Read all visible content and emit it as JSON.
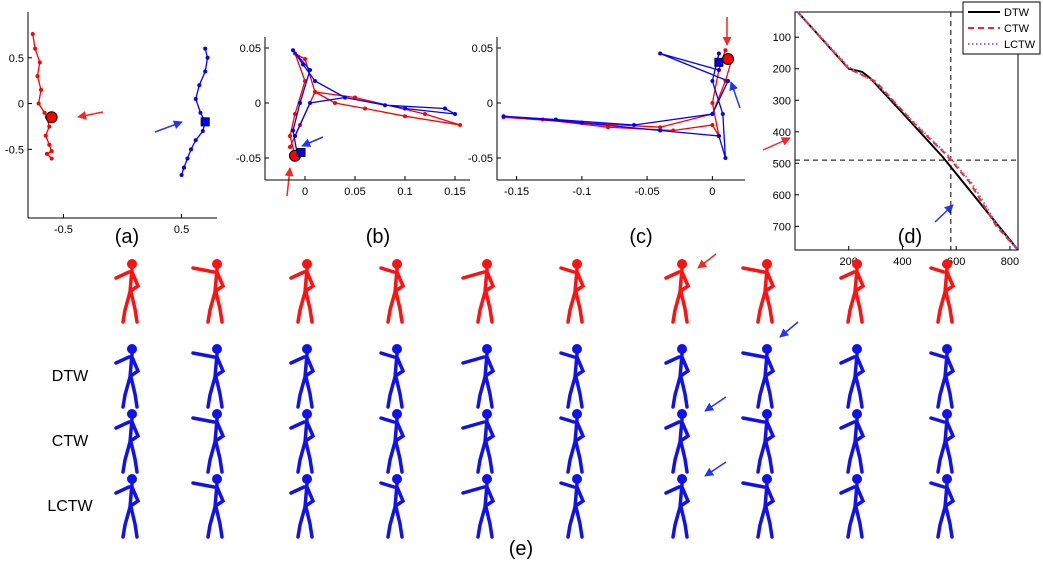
{
  "chart_data": [
    {
      "type": "line",
      "panel": "(a)",
      "xlim": [
        -0.8,
        0.8
      ],
      "ylim": [
        -1.25,
        1
      ],
      "xticks": [
        -0.5,
        0.5
      ],
      "yticks": [
        0.5,
        0,
        -0.5
      ],
      "series": [
        {
          "color": "#ff0000",
          "x": [
            -0.76,
            -0.74,
            -0.7,
            -0.72,
            -0.69,
            -0.71,
            -0.66,
            -0.64,
            -0.62,
            -0.65,
            -0.62,
            -0.6,
            -0.64,
            -0.6
          ],
          "values": [
            0.76,
            0.6,
            0.45,
            0.3,
            0.15,
            0.0,
            -0.1,
            -0.15,
            -0.25,
            -0.35,
            -0.45,
            -0.52,
            -0.55,
            -0.6
          ]
        },
        {
          "color": "#0000ff",
          "x": [
            0.7,
            0.72,
            0.7,
            0.65,
            0.62,
            0.66,
            0.7,
            0.68,
            0.62,
            0.58,
            0.55,
            0.52,
            0.5,
            0.52
          ],
          "values": [
            0.6,
            0.5,
            0.35,
            0.2,
            0.05,
            -0.1,
            -0.2,
            -0.3,
            -0.4,
            -0.5,
            -0.6,
            -0.7,
            -0.78,
            -0.7
          ]
        }
      ],
      "highlights": [
        {
          "color": "#ff0000",
          "marker": "circle",
          "x": -0.6,
          "value": -0.15
        },
        {
          "color": "#0000ff",
          "marker": "square",
          "x": 0.7,
          "value": -0.2
        }
      ]
    },
    {
      "type": "line",
      "panel": "(b)",
      "xlim": [
        -0.04,
        0.165
      ],
      "ylim": [
        -0.07,
        0.06
      ],
      "xticks": [
        0,
        0.05,
        0.1,
        0.15
      ],
      "yticks": [
        0.05,
        0,
        -0.05
      ],
      "series": [
        {
          "color": "#ff0000",
          "x": [
            -0.01,
            -0.015,
            -0.01,
            0,
            -0.01,
            0,
            0.01,
            0.03,
            0.06,
            0.1,
            0.155,
            0.12,
            0.05,
            0.01,
            -0.005,
            -0.015
          ],
          "values": [
            -0.048,
            -0.03,
            -0.01,
            0.02,
            0.045,
            0.04,
            0.01,
            0.0,
            -0.005,
            -0.012,
            -0.02,
            -0.01,
            0.005,
            0.01,
            -0.02,
            -0.04
          ]
        },
        {
          "color": "#0000ff",
          "x": [
            -0.008,
            -0.012,
            -0.005,
            0.005,
            -0.012,
            -0.002,
            0.01,
            0.04,
            0.08,
            0.14,
            0.15,
            0.1,
            0.04,
            0.005,
            -0.01
          ],
          "values": [
            -0.045,
            -0.025,
            0.0,
            0.03,
            0.048,
            0.035,
            0.02,
            0.005,
            -0.002,
            -0.005,
            -0.01,
            -0.005,
            0.005,
            0.0,
            -0.03
          ]
        }
      ],
      "highlights": [
        {
          "color": "#ff0000",
          "marker": "circle",
          "x": -0.01,
          "value": -0.048
        },
        {
          "color": "#0000ff",
          "marker": "square",
          "x": -0.004,
          "value": -0.045
        }
      ]
    },
    {
      "type": "line",
      "panel": "(c)",
      "xlim": [
        -0.165,
        0.025
      ],
      "ylim": [
        -0.07,
        0.06
      ],
      "xticks": [
        -0.15,
        -0.1,
        -0.05,
        0
      ],
      "yticks": [
        0.05,
        0,
        -0.05
      ],
      "series": [
        {
          "color": "#ff0000",
          "x": [
            0.01,
            0.005,
            0.0,
            0.005,
            0.0,
            -0.03,
            -0.08,
            -0.13,
            -0.16,
            -0.1,
            -0.04,
            0,
            0.01,
            0.015
          ],
          "values": [
            0.048,
            0.03,
            0.0,
            -0.03,
            -0.02,
            -0.025,
            -0.022,
            -0.015,
            -0.013,
            -0.018,
            -0.022,
            -0.01,
            0.02,
            0.04
          ]
        },
        {
          "color": "#0000ff",
          "x": [
            0.005,
            0.0,
            0.008,
            0.01,
            0.005,
            -0.04,
            -0.1,
            -0.16,
            -0.12,
            -0.06,
            0,
            0.012,
            -0.04,
            0.005
          ],
          "values": [
            0.045,
            0.02,
            -0.01,
            -0.05,
            -0.03,
            -0.025,
            -0.018,
            -0.012,
            -0.015,
            -0.02,
            -0.01,
            0.02,
            0.045,
            0.03
          ]
        }
      ],
      "highlights": [
        {
          "color": "#ff0000",
          "marker": "circle",
          "x": 0.012,
          "value": 0.04
        },
        {
          "color": "#0000ff",
          "marker": "square",
          "x": 0.005,
          "value": 0.037
        }
      ]
    },
    {
      "type": "line",
      "panel": "(d)",
      "y_reversed": true,
      "legend": "upper right",
      "xlim": [
        0,
        830
      ],
      "ylim": [
        20,
        775
      ],
      "xticks": [
        200,
        400,
        600,
        800
      ],
      "yticks": [
        100,
        200,
        300,
        400,
        500,
        600,
        700
      ],
      "hline": 490,
      "vline": 580,
      "series": [
        {
          "name": "DTW",
          "color": "#000000",
          "dash": "solid",
          "x": [
            10,
            200,
            250,
            280,
            400,
            550,
            830
          ],
          "values": [
            20,
            200,
            210,
            230,
            340,
            480,
            775
          ]
        },
        {
          "name": "CTW",
          "color": "#ff2222",
          "dash": "dashed",
          "x": [
            10,
            200,
            300,
            450,
            560,
            650,
            750,
            830
          ],
          "values": [
            20,
            200,
            240,
            380,
            470,
            560,
            700,
            775
          ]
        },
        {
          "name": "LCTW",
          "color": "#9966bb",
          "dash": "dotted",
          "x": [
            10,
            200,
            300,
            460,
            570,
            660,
            760,
            830
          ],
          "values": [
            20,
            195,
            245,
            385,
            475,
            565,
            705,
            775
          ]
        }
      ]
    }
  ],
  "figure": {
    "panel_e": "(e)",
    "rows": [
      "DTW",
      "CTW",
      "LCTW"
    ]
  }
}
